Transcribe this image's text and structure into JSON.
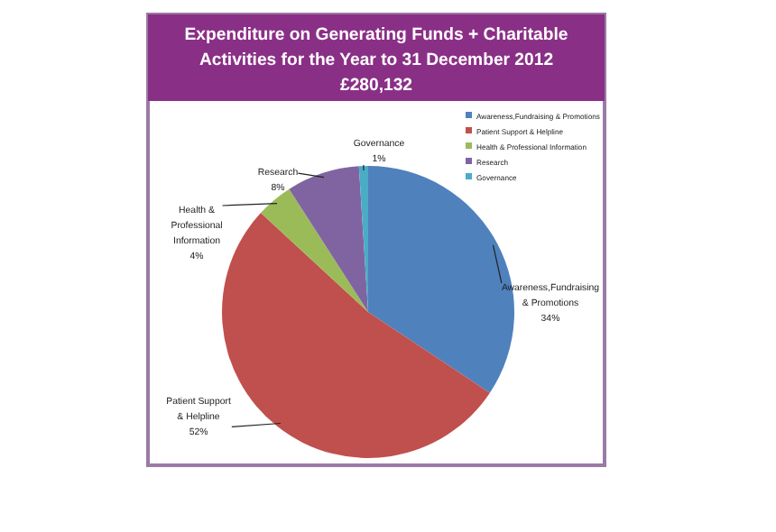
{
  "chart_data": {
    "type": "pie",
    "title": "Expenditure on Generating Funds + Charitable Activities for the Year to 31 December 2012",
    "subtitle": "£280,132",
    "categories": [
      "Awareness,Fundraising & Promotions",
      "Patient Support & Helpline",
      "Health & Professional Information",
      "Research",
      "Governance"
    ],
    "values": [
      34,
      52,
      4,
      8,
      1
    ],
    "value_labels": [
      "34%",
      "52%",
      "4%",
      "8%",
      "1%"
    ],
    "colors": [
      "#4f81bd",
      "#c0504d",
      "#9bbb59",
      "#8064a2",
      "#4bacc6"
    ],
    "legend": "top right"
  }
}
